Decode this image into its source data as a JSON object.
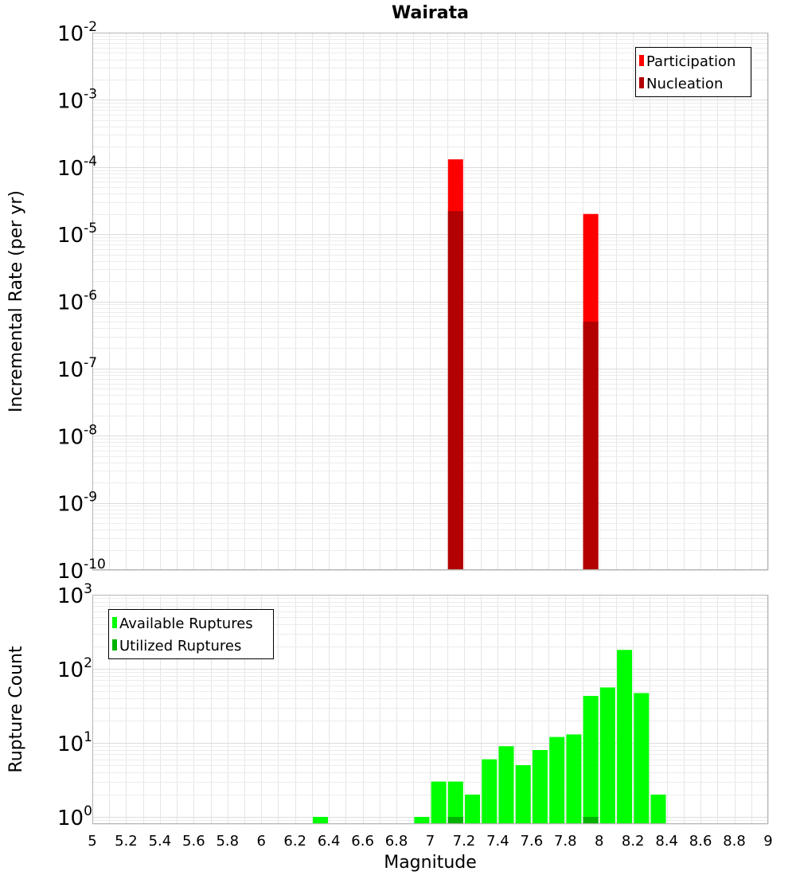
{
  "chart_data": [
    {
      "type": "bar",
      "title": "Wairata",
      "xlabel": "",
      "ylabel": "Incremental Rate (per yr)",
      "xlim": [
        5,
        9
      ],
      "ylim": [
        1e-10,
        0.01
      ],
      "yscale": "log",
      "y_tick_bases": [
        "10",
        "10",
        "10",
        "10",
        "10",
        "10",
        "10",
        "10",
        "10"
      ],
      "y_tick_exponents": [
        "-10",
        "-9",
        "-8",
        "-7",
        "-6",
        "-5",
        "-4",
        "-3",
        "-2"
      ],
      "grid": true,
      "legend_position": "top-right",
      "series": [
        {
          "name": "Participation",
          "color": "#ff0000",
          "x": [
            7.15,
            7.95
          ],
          "values": [
            0.00013,
            2e-05
          ]
        },
        {
          "name": "Nucleation",
          "color": "#b30000",
          "x": [
            7.15,
            7.95
          ],
          "values": [
            2.2e-05,
            5e-07
          ]
        }
      ]
    },
    {
      "type": "bar",
      "title": "",
      "xlabel": "Magnitude",
      "ylabel": "Rupture Count",
      "xlim": [
        5,
        9
      ],
      "ylim": [
        0.8,
        1000
      ],
      "yscale": "log",
      "x_ticks": [
        "5",
        "5.2",
        "5.4",
        "5.6",
        "5.8",
        "6",
        "6.2",
        "6.4",
        "6.6",
        "6.8",
        "7",
        "7.2",
        "7.4",
        "7.6",
        "7.8",
        "8",
        "8.2",
        "8.4",
        "8.6",
        "8.8",
        "9"
      ],
      "y_tick_bases": [
        "10",
        "10",
        "10",
        "10"
      ],
      "y_tick_exponents": [
        "0",
        "1",
        "2",
        "3"
      ],
      "grid": true,
      "legend_position": "top-left",
      "series": [
        {
          "name": "Available Ruptures",
          "color": "#00ff00",
          "x": [
            6.35,
            6.95,
            7.05,
            7.15,
            7.25,
            7.35,
            7.45,
            7.55,
            7.65,
            7.75,
            7.85,
            7.95,
            8.05,
            8.15,
            8.25,
            8.35
          ],
          "values": [
            1,
            1,
            3,
            3,
            2,
            6,
            9,
            5,
            8,
            12,
            13,
            43,
            56,
            180,
            47,
            2
          ]
        },
        {
          "name": "Utilized Ruptures",
          "color": "#00b300",
          "x": [
            7.15,
            7.95
          ],
          "values": [
            1,
            1
          ]
        }
      ]
    }
  ]
}
